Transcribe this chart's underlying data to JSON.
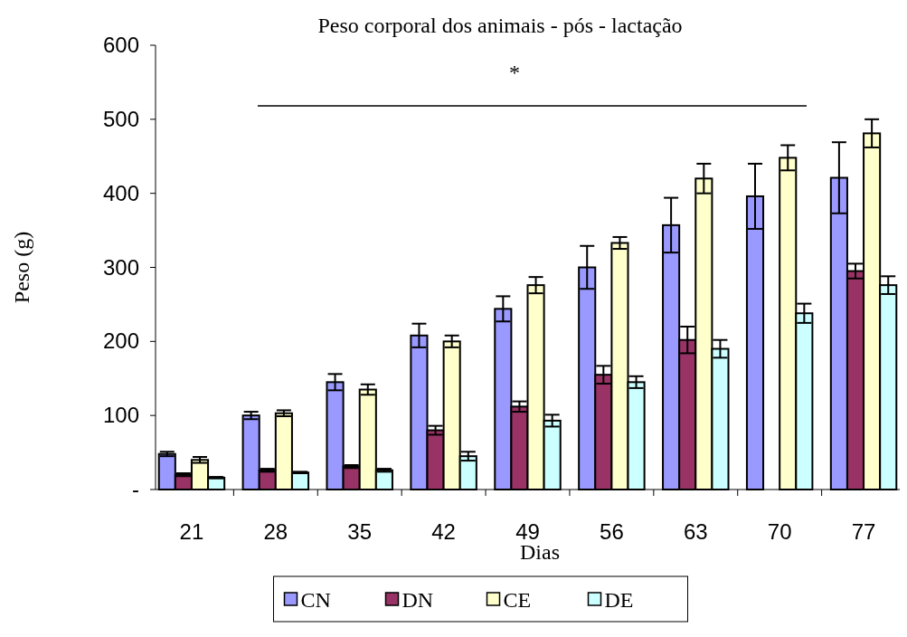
{
  "chart_data": {
    "type": "bar",
    "title": "Peso corporal dos animais - pós - lactação",
    "xlabel": "Dias",
    "ylabel": "Peso (g)",
    "categories": [
      "21",
      "28",
      "35",
      "42",
      "49",
      "56",
      "63",
      "70",
      "77"
    ],
    "series": [
      {
        "name": "CN",
        "color": "#9999ff",
        "values": [
          48,
          100,
          145,
          208,
          244,
          300,
          357,
          396,
          421
        ],
        "errors": [
          3,
          5,
          11,
          16,
          17,
          29,
          37,
          44,
          48
        ]
      },
      {
        "name": "DN",
        "color": "#993366",
        "values": [
          20,
          26,
          31,
          80,
          112,
          155,
          202,
          null,
          295
        ],
        "errors": [
          2,
          2,
          2,
          6,
          7,
          12,
          18,
          null,
          10
        ]
      },
      {
        "name": "CE",
        "color": "#ffffcc",
        "values": [
          40,
          103,
          135,
          200,
          276,
          333,
          420,
          448,
          481
        ],
        "errors": [
          4,
          4,
          7,
          8,
          11,
          8,
          20,
          17,
          19
        ]
      },
      {
        "name": "DE",
        "color": "#ccffff",
        "values": [
          16,
          23,
          26,
          45,
          93,
          145,
          190,
          238,
          276
        ],
        "errors": [
          1,
          1,
          2,
          6,
          8,
          8,
          12,
          13,
          12
        ]
      }
    ],
    "ylim": [
      0,
      600
    ],
    "yticks": [
      {
        "value": 0,
        "label": "-"
      },
      100,
      200,
      300,
      400,
      500,
      600
    ],
    "annotations": [
      "*"
    ],
    "grid": false,
    "legend": "bottom"
  }
}
